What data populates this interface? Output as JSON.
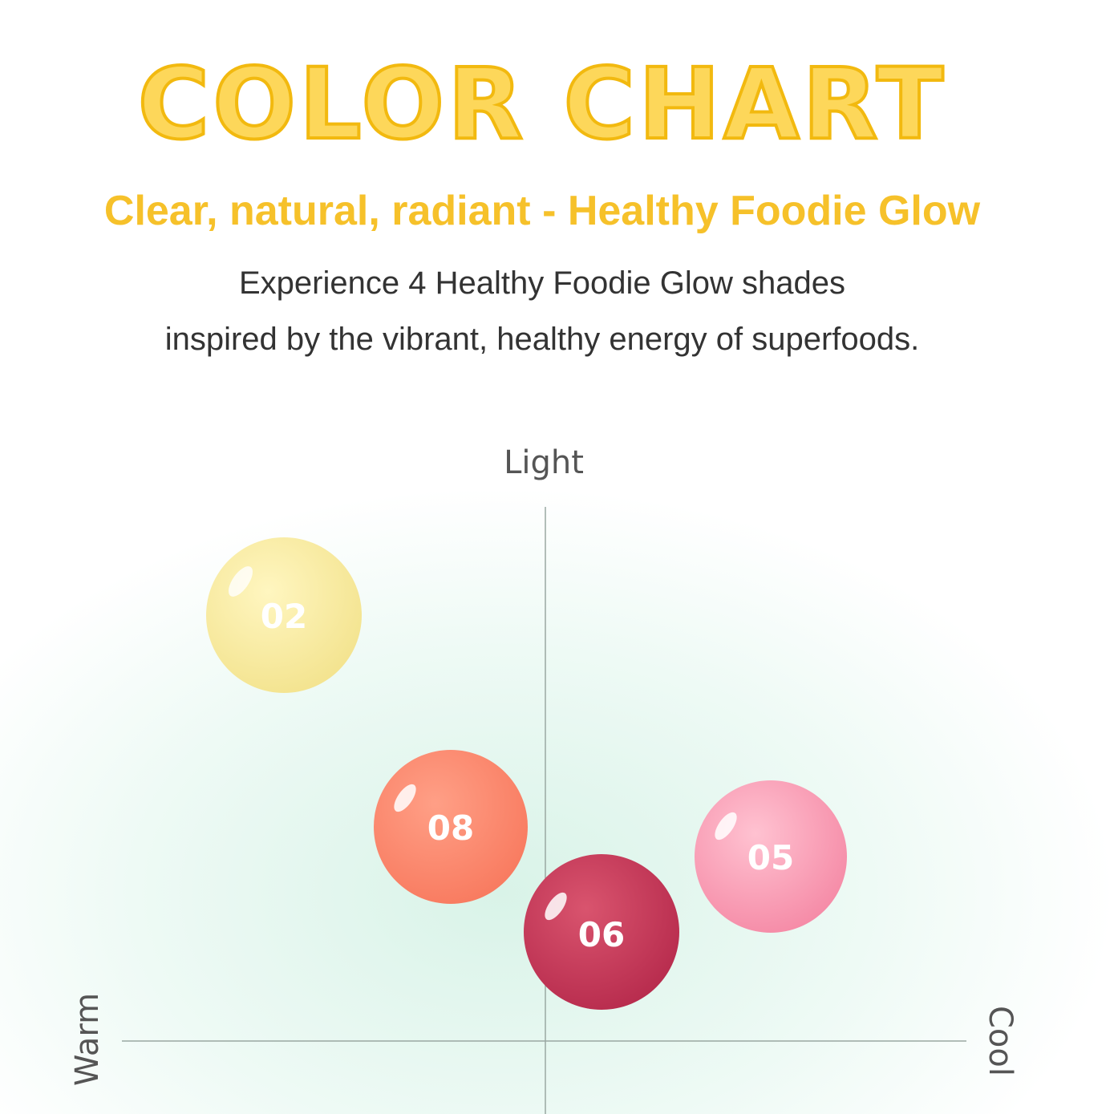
{
  "header": {
    "title": "COLOR CHART",
    "subtitle": "Clear, natural, radiant - Healthy Foodie Glow",
    "description": [
      "Experience 4 Healthy Foodie Glow shades",
      "inspired by the vibrant, healthy energy of superfoods."
    ]
  },
  "axes": {
    "top": "Light",
    "left": "Warm",
    "right": "Cool"
  },
  "swatches": [
    {
      "label": "02"
    },
    {
      "label": "08"
    },
    {
      "label": "06"
    },
    {
      "label": "05"
    }
  ]
}
